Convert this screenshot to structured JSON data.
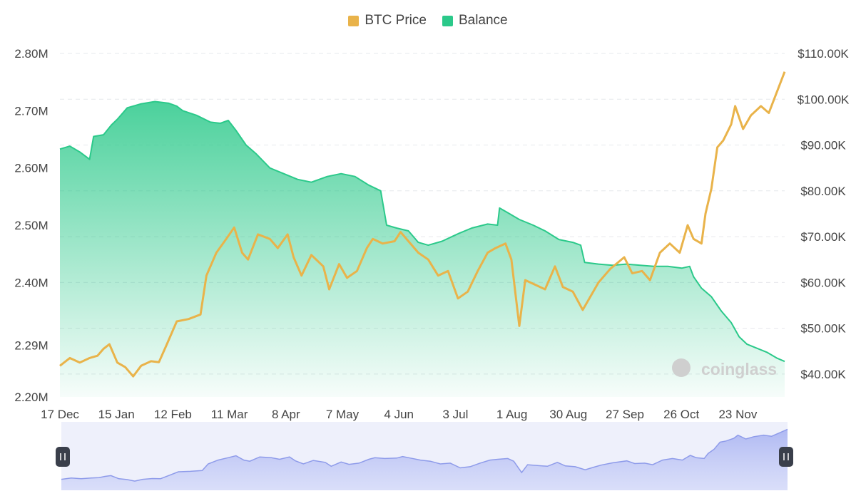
{
  "legend": [
    {
      "label": "BTC Price",
      "color": "#E9B34A"
    },
    {
      "label": "Balance",
      "color": "#2BC98A"
    }
  ],
  "watermark": "coinglass",
  "chart_data": {
    "type": "line",
    "title": "",
    "legend_position": "top-center",
    "grid": true,
    "x_tick_labels": [
      "17 Dec",
      "15 Jan",
      "12 Feb",
      "11 Mar",
      "8 Apr",
      "7 May",
      "4 Jun",
      "3 Jul",
      "1 Aug",
      "30 Aug",
      "27 Sep",
      "26 Oct",
      "23 Nov"
    ],
    "x_range": [
      "2023-12-17",
      "2024-12-17"
    ],
    "y_left_ticks": [
      "2.20M",
      "2.29M",
      "2.40M",
      "2.50M",
      "2.60M",
      "2.70M",
      "2.80M"
    ],
    "y_left_range": [
      2.2,
      2.8
    ],
    "y_left_unit": "M",
    "y_right_ticks": [
      "$40.00K",
      "$50.00K",
      "$60.00K",
      "$70.00K",
      "$80.00K",
      "$90.00K",
      "$100.00K",
      "$110.00K"
    ],
    "y_right_range": [
      35,
      110
    ],
    "y_right_unit": "K USD",
    "series": [
      {
        "name": "Balance",
        "axis": "left",
        "type": "area",
        "color": "#2BC98A",
        "points": [
          [
            "2023-12-17",
            2.633
          ],
          [
            "2023-12-22",
            2.638
          ],
          [
            "2023-12-27",
            2.628
          ],
          [
            "2024-01-01",
            2.615
          ],
          [
            "2024-01-03",
            2.655
          ],
          [
            "2024-01-08",
            2.658
          ],
          [
            "2024-01-12",
            2.675
          ],
          [
            "2024-01-15",
            2.685
          ],
          [
            "2024-01-20",
            2.705
          ],
          [
            "2024-01-27",
            2.712
          ],
          [
            "2024-02-03",
            2.716
          ],
          [
            "2024-02-10",
            2.713
          ],
          [
            "2024-02-14",
            2.708
          ],
          [
            "2024-02-17",
            2.7
          ],
          [
            "2024-02-24",
            2.692
          ],
          [
            "2024-03-02",
            2.68
          ],
          [
            "2024-03-07",
            2.678
          ],
          [
            "2024-03-11",
            2.683
          ],
          [
            "2024-03-15",
            2.665
          ],
          [
            "2024-03-20",
            2.64
          ],
          [
            "2024-03-25",
            2.625
          ],
          [
            "2024-04-01",
            2.6
          ],
          [
            "2024-04-08",
            2.59
          ],
          [
            "2024-04-15",
            2.58
          ],
          [
            "2024-04-22",
            2.575
          ],
          [
            "2024-04-30",
            2.585
          ],
          [
            "2024-05-07",
            2.59
          ],
          [
            "2024-05-14",
            2.585
          ],
          [
            "2024-05-21",
            2.57
          ],
          [
            "2024-05-27",
            2.56
          ],
          [
            "2024-05-30",
            2.5
          ],
          [
            "2024-06-04",
            2.495
          ],
          [
            "2024-06-10",
            2.49
          ],
          [
            "2024-06-15",
            2.47
          ],
          [
            "2024-06-20",
            2.465
          ],
          [
            "2024-06-27",
            2.472
          ],
          [
            "2024-07-05",
            2.485
          ],
          [
            "2024-07-12",
            2.495
          ],
          [
            "2024-07-20",
            2.502
          ],
          [
            "2024-07-25",
            2.5
          ],
          [
            "2024-07-26",
            2.53
          ],
          [
            "2024-07-30",
            2.522
          ],
          [
            "2024-08-05",
            2.51
          ],
          [
            "2024-08-12",
            2.5
          ],
          [
            "2024-08-18",
            2.49
          ],
          [
            "2024-08-25",
            2.475
          ],
          [
            "2024-09-01",
            2.47
          ],
          [
            "2024-09-05",
            2.465
          ],
          [
            "2024-09-07",
            2.435
          ],
          [
            "2024-09-14",
            2.432
          ],
          [
            "2024-09-21",
            2.43
          ],
          [
            "2024-09-28",
            2.432
          ],
          [
            "2024-10-05",
            2.43
          ],
          [
            "2024-10-12",
            2.428
          ],
          [
            "2024-10-19",
            2.428
          ],
          [
            "2024-10-26",
            2.425
          ],
          [
            "2024-10-30",
            2.428
          ],
          [
            "2024-11-01",
            2.41
          ],
          [
            "2024-11-05",
            2.39
          ],
          [
            "2024-11-10",
            2.375
          ],
          [
            "2024-11-15",
            2.35
          ],
          [
            "2024-11-20",
            2.33
          ],
          [
            "2024-11-24",
            2.305
          ],
          [
            "2024-11-28",
            2.292
          ],
          [
            "2024-12-03",
            2.285
          ],
          [
            "2024-12-08",
            2.278
          ],
          [
            "2024-12-13",
            2.268
          ],
          [
            "2024-12-17",
            2.262
          ]
        ]
      },
      {
        "name": "BTC Price",
        "axis": "right",
        "type": "line",
        "color": "#E9B34A",
        "points": [
          [
            "2023-12-17",
            41.8
          ],
          [
            "2023-12-22",
            43.5
          ],
          [
            "2023-12-27",
            42.5
          ],
          [
            "2024-01-01",
            43.5
          ],
          [
            "2024-01-05",
            44.0
          ],
          [
            "2024-01-08",
            45.5
          ],
          [
            "2024-01-11",
            46.5
          ],
          [
            "2024-01-15",
            42.5
          ],
          [
            "2024-01-19",
            41.5
          ],
          [
            "2024-01-23",
            39.5
          ],
          [
            "2024-01-27",
            41.8
          ],
          [
            "2024-02-01",
            42.8
          ],
          [
            "2024-02-05",
            42.6
          ],
          [
            "2024-02-09",
            46.5
          ],
          [
            "2024-02-14",
            51.5
          ],
          [
            "2024-02-20",
            52.0
          ],
          [
            "2024-02-26",
            53.0
          ],
          [
            "2024-02-29",
            61.5
          ],
          [
            "2024-03-05",
            66.5
          ],
          [
            "2024-03-10",
            69.5
          ],
          [
            "2024-03-14",
            72.0
          ],
          [
            "2024-03-18",
            66.5
          ],
          [
            "2024-03-21",
            65.0
          ],
          [
            "2024-03-26",
            70.5
          ],
          [
            "2024-04-01",
            69.5
          ],
          [
            "2024-04-05",
            67.5
          ],
          [
            "2024-04-10",
            70.5
          ],
          [
            "2024-04-13",
            65.5
          ],
          [
            "2024-04-17",
            61.5
          ],
          [
            "2024-04-22",
            66.0
          ],
          [
            "2024-04-28",
            63.5
          ],
          [
            "2024-05-01",
            58.5
          ],
          [
            "2024-05-06",
            64.0
          ],
          [
            "2024-05-10",
            61.0
          ],
          [
            "2024-05-15",
            62.5
          ],
          [
            "2024-05-20",
            67.5
          ],
          [
            "2024-05-23",
            69.5
          ],
          [
            "2024-05-28",
            68.5
          ],
          [
            "2024-06-03",
            69.0
          ],
          [
            "2024-06-06",
            71.0
          ],
          [
            "2024-06-10",
            69.0
          ],
          [
            "2024-06-15",
            66.5
          ],
          [
            "2024-06-20",
            65.0
          ],
          [
            "2024-06-25",
            61.5
          ],
          [
            "2024-06-30",
            62.5
          ],
          [
            "2024-07-05",
            56.5
          ],
          [
            "2024-07-10",
            58.0
          ],
          [
            "2024-07-15",
            62.5
          ],
          [
            "2024-07-20",
            66.5
          ],
          [
            "2024-07-24",
            67.5
          ],
          [
            "2024-07-29",
            68.5
          ],
          [
            "2024-08-01",
            65.0
          ],
          [
            "2024-08-05",
            50.5
          ],
          [
            "2024-08-08",
            60.5
          ],
          [
            "2024-08-13",
            59.5
          ],
          [
            "2024-08-18",
            58.5
          ],
          [
            "2024-08-23",
            63.5
          ],
          [
            "2024-08-27",
            59.0
          ],
          [
            "2024-09-01",
            58.0
          ],
          [
            "2024-09-06",
            54.0
          ],
          [
            "2024-09-10",
            57.0
          ],
          [
            "2024-09-14",
            60.0
          ],
          [
            "2024-09-20",
            63.0
          ],
          [
            "2024-09-27",
            65.5
          ],
          [
            "2024-10-01",
            62.0
          ],
          [
            "2024-10-06",
            62.5
          ],
          [
            "2024-10-10",
            60.5
          ],
          [
            "2024-10-15",
            66.5
          ],
          [
            "2024-10-20",
            68.5
          ],
          [
            "2024-10-25",
            66.5
          ],
          [
            "2024-10-29",
            72.5
          ],
          [
            "2024-11-01",
            69.5
          ],
          [
            "2024-11-05",
            68.5
          ],
          [
            "2024-11-07",
            75.0
          ],
          [
            "2024-11-10",
            80.5
          ],
          [
            "2024-11-13",
            89.5
          ],
          [
            "2024-11-16",
            91.0
          ],
          [
            "2024-11-20",
            94.5
          ],
          [
            "2024-11-22",
            98.5
          ],
          [
            "2024-11-26",
            93.5
          ],
          [
            "2024-11-30",
            96.5
          ],
          [
            "2024-12-05",
            98.5
          ],
          [
            "2024-12-09",
            97.0
          ],
          [
            "2024-12-13",
            101.5
          ],
          [
            "2024-12-17",
            106.0
          ]
        ]
      }
    ]
  }
}
